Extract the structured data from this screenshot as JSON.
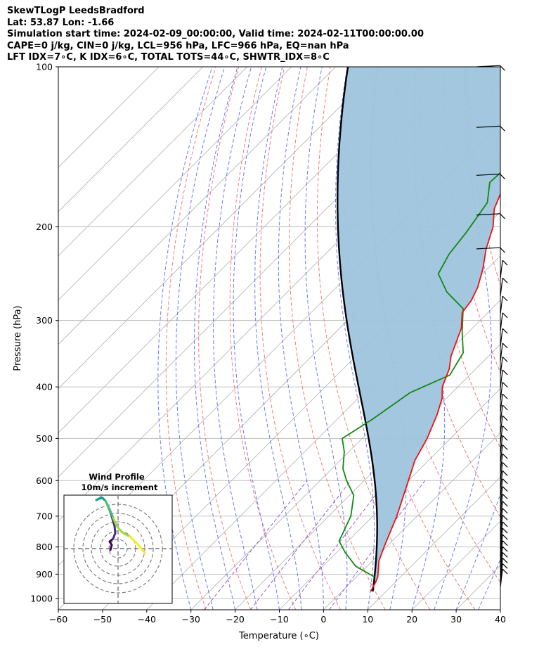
{
  "header": {
    "line1": "SkewTLogP LeedsBradford",
    "line2": "Lat: 53.87   Lon: -1.66",
    "line3": "Simulation start time: 2024-02-09_00:00:00, Valid time: 2024-02-11T00:00:00.00",
    "line4": "CAPE=0 j/kg, CIN=0 j/kg, LCL=956 hPa, LFC=966 hPa, EQ=nan hPa",
    "line5": "LFT IDX=7∘C, K IDX=6∘C, TOTAL TOTS=44∘C, SHWTR_IDX=8∘C"
  },
  "axes": {
    "xlabel": "Temperature (∘C)",
    "ylabel": "Pressure (hPa)",
    "x_ticks": [
      "−60",
      "−50",
      "−40",
      "−30",
      "−20",
      "−10",
      "0",
      "10",
      "20",
      "30",
      "40"
    ],
    "y_ticks": [
      "100",
      "200",
      "300",
      "400",
      "500",
      "600",
      "700",
      "800",
      "900",
      "1000"
    ]
  },
  "inset": {
    "title": "Wind Profile",
    "subtitle": "10m/s increment"
  },
  "colors": {
    "temperature": "#ee1111",
    "dewpoint": "#118811",
    "parcel": "#000000",
    "cape_fill": "#9fc4de",
    "dry_adiabat": "#f46b6b",
    "moist_adiabat": "#5b6cf0",
    "mixing_ratio": "#9a5bd0",
    "isotherm": "#b0b0b0"
  },
  "chart_data": {
    "type": "line",
    "x_range": [
      -60,
      40
    ],
    "p_range": [
      1050,
      100
    ],
    "y_scale": "log",
    "skew": "45deg",
    "grid": true,
    "series": [],
    "temperature_profile": {
      "p": [
        970,
        930,
        910,
        850,
        800,
        700,
        600,
        550,
        500,
        450,
        420,
        400,
        370,
        350,
        310,
        290,
        275,
        260,
        240,
        220,
        200,
        185,
        165,
        150,
        130,
        115,
        100
      ],
      "T": [
        6.5,
        5.5,
        4.8,
        1.5,
        -0.5,
        -4.6,
        -10.0,
        -13.1,
        -15.3,
        -18.5,
        -21.0,
        -23.5,
        -26.0,
        -28.5,
        -32.5,
        -35.8,
        -36.5,
        -38.0,
        -41.0,
        -44.8,
        -48.2,
        -52.0,
        -55.5,
        -57.5,
        -58.5,
        -58.5,
        -59.0
      ]
    },
    "dewpoint_profile": {
      "p": [
        910,
        870,
        820,
        780,
        700,
        640,
        600,
        570,
        530,
        500,
        460,
        410,
        380,
        345,
        315,
        285,
        265,
        245,
        225,
        205,
        180,
        165,
        150,
        125,
        100
      ],
      "Td": [
        4.0,
        -2.5,
        -8.0,
        -12.0,
        -15.0,
        -19.0,
        -24.0,
        -27.5,
        -31.0,
        -34.5,
        -32.0,
        -29.5,
        -24.5,
        -26.5,
        -31.5,
        -36.5,
        -44.0,
        -50.0,
        -52.0,
        -53.0,
        -55.0,
        -59.0,
        -58.5,
        -58.0,
        -58.0
      ]
    },
    "parcel_profile": {
      "note_start_p": 970,
      "T0": 7.0
    },
    "wind_hodograph_points": 40
  }
}
